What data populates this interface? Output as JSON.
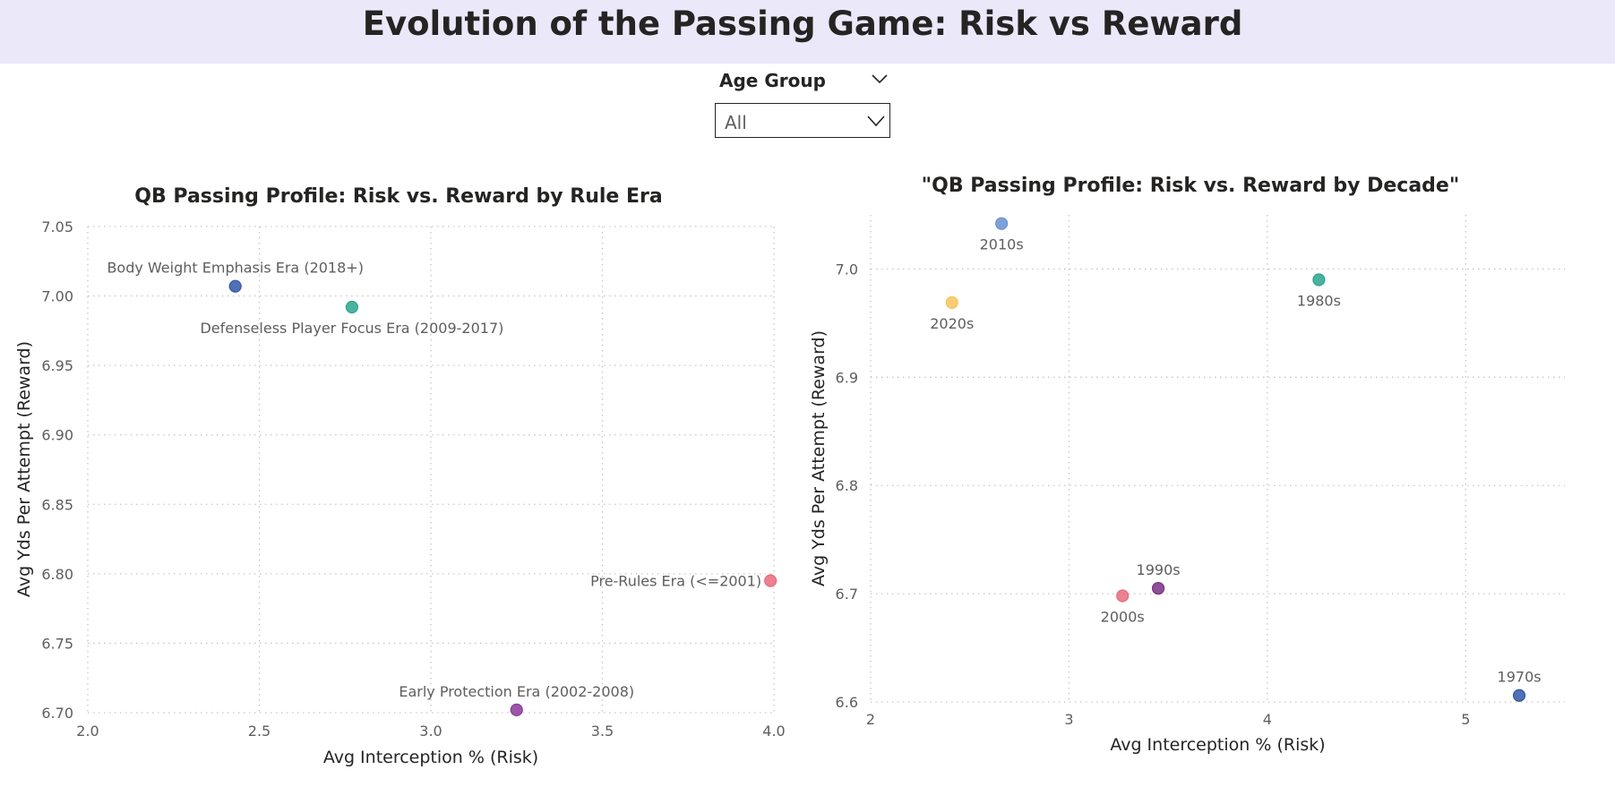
{
  "page": {
    "title": "Evolution of the Passing Game: Risk vs Reward",
    "title_bar_color": "#ebe8fa"
  },
  "slicer": {
    "title": "Age Group",
    "value": "All",
    "collapse_icon": "chevron-down-icon",
    "dropdown_icon": "chevron-down-icon"
  },
  "chart_data": [
    {
      "type": "scatter",
      "title": "QB Passing Profile: Risk vs. Reward by Rule Era",
      "xlabel": "Avg Interception % (Risk)",
      "ylabel": "Avg Yds Per Attempt (Reward)",
      "xlim": [
        2.0,
        4.0
      ],
      "ylim": [
        6.7,
        7.05
      ],
      "xticks": [
        "2.0",
        "2.5",
        "3.0",
        "3.5",
        "4.0"
      ],
      "yticks": [
        "6.70",
        "6.75",
        "6.80",
        "6.85",
        "6.90",
        "6.95",
        "7.00",
        "7.05"
      ],
      "grid": true,
      "points": [
        {
          "label": "Body Weight Emphasis Era (2018+)",
          "x": 2.43,
          "y": 7.007,
          "color": "#3257a8",
          "label_pos": "above"
        },
        {
          "label": "Defenseless Player Focus Era (2009-2017)",
          "x": 2.77,
          "y": 6.992,
          "color": "#2ca58d",
          "label_pos": "below"
        },
        {
          "label": "Pre-Rules Era (<=2001)",
          "x": 3.99,
          "y": 6.795,
          "color": "#e66c7d",
          "label_pos": "left"
        },
        {
          "label": "Early Protection Era (2002-2008)",
          "x": 3.25,
          "y": 6.702,
          "color": "#8a3a96",
          "label_pos": "above"
        }
      ]
    },
    {
      "type": "scatter",
      "title": "\"QB Passing Profile: Risk vs. Reward by Decade\"",
      "xlabel": "Avg Interception % (Risk)",
      "ylabel": "Avg Yds Per Attempt (Reward)",
      "xlim": [
        2.0,
        5.5
      ],
      "ylim": [
        6.6,
        7.05
      ],
      "xticks": [
        "2",
        "3",
        "4",
        "5"
      ],
      "yticks": [
        "6.6",
        "6.7",
        "6.8",
        "6.9",
        "7.0"
      ],
      "grid": true,
      "points": [
        {
          "label": "2010s",
          "x": 2.66,
          "y": 7.042,
          "color": "#6a8fd4",
          "label_pos": "below"
        },
        {
          "label": "2020s",
          "x": 2.41,
          "y": 6.969,
          "color": "#f5c45e",
          "label_pos": "below"
        },
        {
          "label": "1980s",
          "x": 4.26,
          "y": 6.99,
          "color": "#2ca58d",
          "label_pos": "below"
        },
        {
          "label": "1990s",
          "x": 3.45,
          "y": 6.705,
          "color": "#7a2f86",
          "label_pos": "above"
        },
        {
          "label": "2000s",
          "x": 3.27,
          "y": 6.698,
          "color": "#e66c7d",
          "label_pos": "below"
        },
        {
          "label": "1970s",
          "x": 5.27,
          "y": 6.606,
          "color": "#3257a8",
          "label_pos": "above"
        }
      ]
    }
  ]
}
